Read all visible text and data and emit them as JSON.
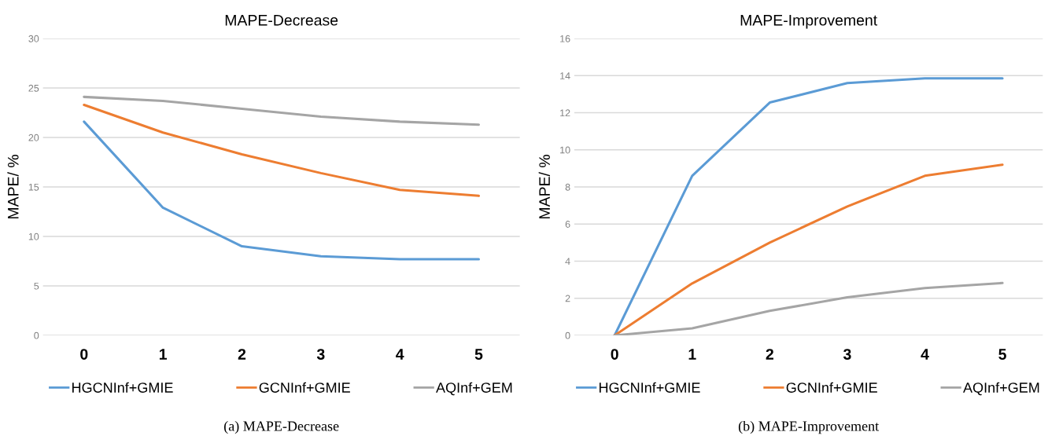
{
  "chart_data": [
    {
      "type": "line",
      "title": "MAPE-Decrease",
      "ylabel": "MAPE/ %",
      "categories": [
        "0",
        "1",
        "2",
        "3",
        "4",
        "5"
      ],
      "series": [
        {
          "name": "HGCNInf+GMIE",
          "color": "#5b9bd5",
          "values": [
            21.6,
            12.9,
            9.0,
            8.0,
            7.7,
            7.7
          ]
        },
        {
          "name": "GCNInf+GMIE",
          "color": "#ed7d31",
          "values": [
            23.3,
            20.5,
            18.3,
            16.4,
            14.7,
            14.1
          ]
        },
        {
          "name": "AQInf+GEM",
          "color": "#a5a5a5",
          "values": [
            24.1,
            23.7,
            22.9,
            22.1,
            21.6,
            21.3
          ]
        }
      ],
      "ylim": [
        0,
        30
      ],
      "yticks": [
        0,
        5,
        10,
        15,
        20,
        25,
        30
      ],
      "grid": "y",
      "legend": "bottom",
      "marker": "none",
      "line_style": "solid",
      "annotations": [
        "(a) MAPE-Decrease"
      ]
    },
    {
      "type": "line",
      "title": "MAPE-Improvement",
      "ylabel": "MAPE/ %",
      "categories": [
        "0",
        "1",
        "2",
        "3",
        "4",
        "5"
      ],
      "series": [
        {
          "name": "HGCNInf+GMIE",
          "color": "#5b9bd5",
          "values": [
            0,
            8.6,
            12.55,
            13.6,
            13.85,
            13.85
          ]
        },
        {
          "name": "GCNInf+GMIE",
          "color": "#ed7d31",
          "values": [
            0,
            2.8,
            5.0,
            6.95,
            8.6,
            9.2
          ]
        },
        {
          "name": "AQInf+GEM",
          "color": "#a5a5a5",
          "values": [
            0,
            0.38,
            1.32,
            2.05,
            2.55,
            2.82
          ]
        }
      ],
      "ylim": [
        0,
        16
      ],
      "yticks": [
        0,
        2,
        4,
        6,
        8,
        10,
        12,
        14,
        16
      ],
      "grid": "y",
      "legend": "bottom",
      "marker": "none",
      "line_style": "solid",
      "annotations": [
        "(b) MAPE-Improvement"
      ]
    }
  ]
}
